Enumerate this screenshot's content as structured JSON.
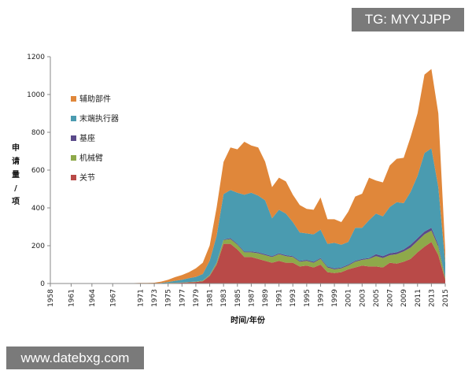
{
  "watermark_top": "TG: MYYJJPP",
  "watermark_bottom": "www.datebxg.com",
  "chart_data": {
    "type": "area",
    "stacked": true,
    "title": "",
    "xlabel": "时间/年份",
    "ylabel": "申请量/项",
    "ylim": [
      0,
      1200
    ],
    "yticks": [
      0,
      200,
      400,
      600,
      800,
      1000,
      1200
    ],
    "x": [
      1958,
      1959,
      1960,
      1961,
      1962,
      1963,
      1964,
      1965,
      1966,
      1967,
      1968,
      1969,
      1970,
      1971,
      1972,
      1973,
      1974,
      1975,
      1976,
      1977,
      1978,
      1979,
      1980,
      1981,
      1982,
      1983,
      1984,
      1985,
      1986,
      1987,
      1988,
      1989,
      1990,
      1991,
      1992,
      1993,
      1994,
      1995,
      1996,
      1997,
      1998,
      1999,
      2000,
      2001,
      2002,
      2003,
      2004,
      2005,
      2006,
      2007,
      2008,
      2009,
      2010,
      2011,
      2012,
      2013,
      2014,
      2015
    ],
    "xtick_labels": [
      "1958",
      "1961",
      "1964",
      "1967",
      "1971",
      "1973",
      "1975",
      "1977",
      "1979",
      "1981",
      "1983",
      "1985",
      "1987",
      "1989",
      "1991",
      "1993",
      "1995",
      "1997",
      "1999",
      "2001",
      "2003",
      "2005",
      "2007",
      "2009",
      "2011",
      "2013",
      "2015"
    ],
    "legend": [
      "辅助部件",
      "末端执行器",
      "基座",
      "机械臂",
      "关节"
    ],
    "series": [
      {
        "name": "关节",
        "color": "#b94a48",
        "values": [
          0,
          0,
          0,
          0,
          0,
          0,
          0,
          0,
          0,
          0,
          0,
          0,
          0,
          0,
          0,
          0,
          1,
          2,
          3,
          4,
          6,
          8,
          12,
          40,
          100,
          210,
          210,
          180,
          140,
          140,
          130,
          120,
          110,
          120,
          110,
          110,
          90,
          95,
          85,
          100,
          60,
          55,
          60,
          75,
          85,
          95,
          90,
          90,
          85,
          110,
          105,
          115,
          130,
          165,
          195,
          220,
          150,
          20
        ]
      },
      {
        "name": "机械臂",
        "color": "#8ea94a",
        "values": [
          0,
          0,
          0,
          0,
          0,
          0,
          0,
          0,
          0,
          0,
          0,
          0,
          0,
          0,
          0,
          0,
          0,
          1,
          1,
          1,
          2,
          2,
          3,
          5,
          10,
          20,
          25,
          25,
          25,
          25,
          30,
          30,
          30,
          35,
          35,
          30,
          25,
          25,
          25,
          30,
          25,
          20,
          20,
          20,
          30,
          30,
          40,
          55,
          50,
          40,
          50,
          55,
          60,
          60,
          65,
          60,
          45,
          10
        ]
      },
      {
        "name": "基座",
        "color": "#5a4a8a",
        "values": [
          0,
          0,
          0,
          0,
          0,
          0,
          0,
          0,
          0,
          0,
          0,
          0,
          0,
          0,
          0,
          0,
          0,
          0,
          0,
          0,
          0,
          0,
          0,
          1,
          2,
          3,
          5,
          5,
          5,
          5,
          5,
          5,
          5,
          5,
          5,
          5,
          5,
          5,
          5,
          5,
          5,
          5,
          5,
          5,
          5,
          5,
          5,
          10,
          10,
          10,
          10,
          10,
          15,
          15,
          15,
          15,
          10,
          5
        ]
      },
      {
        "name": "末端执行器",
        "color": "#4a9bb0",
        "values": [
          0,
          0,
          0,
          0,
          0,
          0,
          0,
          0,
          0,
          0,
          0,
          0,
          0,
          0,
          0,
          0,
          2,
          5,
          10,
          15,
          20,
          25,
          35,
          75,
          140,
          240,
          255,
          270,
          300,
          310,
          300,
          285,
          200,
          230,
          220,
          180,
          150,
          140,
          145,
          150,
          120,
          135,
          120,
          120,
          175,
          165,
          200,
          215,
          210,
          245,
          265,
          245,
          280,
          330,
          415,
          420,
          305,
          75
        ]
      },
      {
        "name": "辅助部件",
        "color": "#e0873a",
        "values": [
          0,
          0,
          0,
          1,
          1,
          1,
          2,
          1,
          1,
          1,
          2,
          2,
          2,
          3,
          3,
          4,
          7,
          12,
          20,
          25,
          32,
          45,
          60,
          80,
          150,
          170,
          225,
          230,
          280,
          250,
          255,
          205,
          165,
          170,
          170,
          145,
          145,
          130,
          130,
          170,
          130,
          125,
          120,
          160,
          165,
          180,
          225,
          175,
          180,
          220,
          230,
          240,
          290,
          330,
          415,
          420,
          390,
          65
        ]
      }
    ]
  }
}
